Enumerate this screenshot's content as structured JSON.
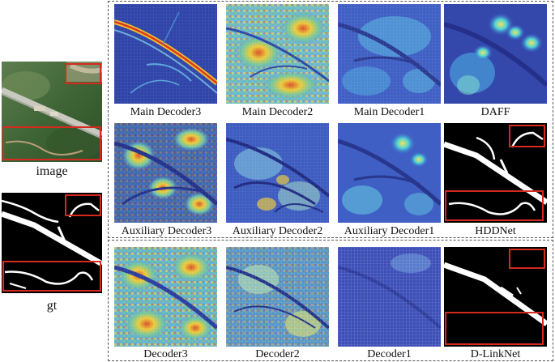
{
  "figure": {
    "left_column": {
      "image_label": "image",
      "gt_label": "gt"
    },
    "panels": [
      {
        "id": "main3",
        "label": "Main Decoder3",
        "style": "heat-road"
      },
      {
        "id": "main2",
        "label": "Main Decoder2",
        "style": "heat-noisy"
      },
      {
        "id": "main1",
        "label": "Main Decoder1",
        "style": "blue-smooth"
      },
      {
        "id": "daff",
        "label": "DAFF",
        "style": "blue-blobs"
      },
      {
        "id": "aux3",
        "label": "Auxiliary Decoder3",
        "style": "heat-blocky"
      },
      {
        "id": "aux2",
        "label": "Auxiliary Decoder2",
        "style": "blue-lines"
      },
      {
        "id": "aux1",
        "label": "Auxiliary Decoder1",
        "style": "blue-smooth"
      },
      {
        "id": "hdd",
        "label": "HDDNet",
        "style": "binary"
      },
      {
        "id": "dec3",
        "label": "Decoder3",
        "style": "heat-noisy"
      },
      {
        "id": "dec2",
        "label": "Decoder2",
        "style": "heat-grid"
      },
      {
        "id": "dec1",
        "label": "Decoder1",
        "style": "blue-grid"
      },
      {
        "id": "dlink",
        "label": "D-LinkNet",
        "style": "binary-partial"
      }
    ],
    "colors": {
      "highlight_box": "#d42a20",
      "dashed_border": "#555555",
      "heat_low": "#2a3a9c",
      "heat_high": "#e8c232"
    }
  }
}
